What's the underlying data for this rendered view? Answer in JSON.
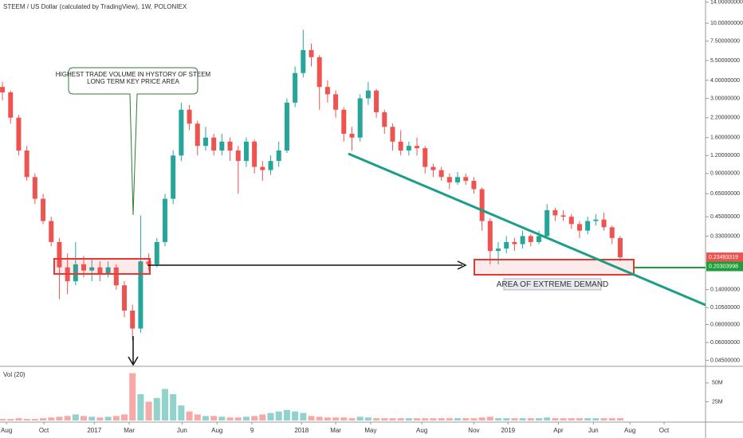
{
  "chart_data": {
    "type": "candlestick",
    "title": "STEEM / US Dollar (calculated by TradingView), 1W, POLONIEX",
    "log_scale": true,
    "up_color": "#26a69a",
    "down_color": "#ef5350",
    "open": [
      3.6,
      3.3,
      2.2,
      1.3,
      0.85,
      0.6,
      0.42,
      0.3,
      0.2,
      0.16,
      0.21,
      0.19,
      0.2,
      0.18,
      0.2,
      0.15,
      0.1,
      0.075,
      0.22,
      0.21,
      0.3,
      0.6,
      1.2,
      2.5,
      2.0,
      1.4,
      1.6,
      1.3,
      1.5,
      1.3,
      1.1,
      1.5,
      1.0,
      0.95,
      1.1,
      1.3,
      2.8,
      4.5,
      6.5,
      5.8,
      3.6,
      3.2,
      2.5,
      1.7,
      1.6,
      3.0,
      3.4,
      2.4,
      1.9,
      1.5,
      1.3,
      1.4,
      1.35,
      1.0,
      0.95,
      0.85,
      0.78,
      0.85,
      0.8,
      0.7,
      0.42,
      0.26,
      0.27,
      0.3,
      0.29,
      0.33,
      0.3,
      0.33,
      0.5,
      0.46,
      0.45,
      0.4,
      0.36,
      0.42,
      0.43,
      0.38,
      0.32
    ],
    "high": [
      3.9,
      3.4,
      2.3,
      1.4,
      0.9,
      0.65,
      0.45,
      0.32,
      0.25,
      0.3,
      0.24,
      0.23,
      0.22,
      0.22,
      0.21,
      0.16,
      0.11,
      0.46,
      0.25,
      0.32,
      0.65,
      1.3,
      2.8,
      2.7,
      2.1,
      1.9,
      1.7,
      1.7,
      1.6,
      1.4,
      1.6,
      1.55,
      1.1,
      1.2,
      1.5,
      3.0,
      5.0,
      9.0,
      7.2,
      6.0,
      4.0,
      3.4,
      2.6,
      1.9,
      3.2,
      3.9,
      3.5,
      2.5,
      2.0,
      1.8,
      1.5,
      1.6,
      1.4,
      1.05,
      1.0,
      0.9,
      0.92,
      0.9,
      0.85,
      0.72,
      0.44,
      0.3,
      0.33,
      0.32,
      0.36,
      0.34,
      0.36,
      0.55,
      0.52,
      0.5,
      0.47,
      0.42,
      0.45,
      0.47,
      0.48,
      0.39,
      0.33
    ],
    "low": [
      2.9,
      2.0,
      1.2,
      0.8,
      0.55,
      0.4,
      0.28,
      0.12,
      0.13,
      0.15,
      0.17,
      0.16,
      0.16,
      0.17,
      0.14,
      0.09,
      0.062,
      0.07,
      0.19,
      0.2,
      0.28,
      0.55,
      1.1,
      1.8,
      1.2,
      1.3,
      1.2,
      1.2,
      1.1,
      0.65,
      1.0,
      0.9,
      0.8,
      0.88,
      1.0,
      1.25,
      2.6,
      4.2,
      5.0,
      2.5,
      2.8,
      2.2,
      1.5,
      1.3,
      1.5,
      2.7,
      2.2,
      1.7,
      1.3,
      1.2,
      1.2,
      1.2,
      0.9,
      0.85,
      0.8,
      0.7,
      0.75,
      0.75,
      0.65,
      0.36,
      0.21,
      0.21,
      0.25,
      0.26,
      0.27,
      0.28,
      0.29,
      0.32,
      0.42,
      0.42,
      0.37,
      0.32,
      0.34,
      0.39,
      0.36,
      0.29,
      0.22
    ],
    "close": [
      3.3,
      2.2,
      1.3,
      0.85,
      0.6,
      0.42,
      0.3,
      0.2,
      0.16,
      0.21,
      0.19,
      0.2,
      0.18,
      0.2,
      0.15,
      0.1,
      0.075,
      0.22,
      0.21,
      0.3,
      0.6,
      1.2,
      2.5,
      2.0,
      1.4,
      1.6,
      1.3,
      1.5,
      1.3,
      1.1,
      1.5,
      1.0,
      0.95,
      1.1,
      1.3,
      2.8,
      4.5,
      6.5,
      5.8,
      3.6,
      3.2,
      2.5,
      1.7,
      1.6,
      3.0,
      3.4,
      2.4,
      1.9,
      1.5,
      1.3,
      1.4,
      1.35,
      1.0,
      0.95,
      0.85,
      0.78,
      0.85,
      0.8,
      0.7,
      0.42,
      0.26,
      0.27,
      0.3,
      0.29,
      0.33,
      0.3,
      0.33,
      0.5,
      0.46,
      0.45,
      0.4,
      0.36,
      0.42,
      0.43,
      0.38,
      0.32,
      0.2349
    ],
    "ylim": [
      0.042,
      14.5
    ],
    "yticks": [
      {
        "value": 14,
        "label": "14.00000000"
      },
      {
        "value": 10,
        "label": "10.00000000"
      },
      {
        "value": 7.5,
        "label": "7.50000000"
      },
      {
        "value": 5.5,
        "label": "5.50000000"
      },
      {
        "value": 4,
        "label": "4.00000000"
      },
      {
        "value": 3,
        "label": "3.00000000"
      },
      {
        "value": 2.2,
        "label": "2.20000000"
      },
      {
        "value": 1.6,
        "label": "1.60000000"
      },
      {
        "value": 1.2,
        "label": "1.20000000"
      },
      {
        "value": 0.9,
        "label": "0.90000000"
      },
      {
        "value": 0.65,
        "label": "0.65000000"
      },
      {
        "value": 0.45,
        "label": "0.45000000"
      },
      {
        "value": 0.33,
        "label": "0.33000000"
      },
      {
        "value": 0.14,
        "label": "0.14000000"
      },
      {
        "value": 0.105,
        "label": "0.10500000"
      },
      {
        "value": 0.08,
        "label": "0.08000000"
      },
      {
        "value": 0.06,
        "label": "0.06000000"
      },
      {
        "value": 0.045,
        "label": "0.04500000"
      }
    ],
    "price_tags": [
      {
        "value": 0.23493319,
        "color": "#ef5350"
      },
      {
        "value": 0.20303998,
        "color": "#1e9e3a"
      }
    ],
    "xlim": [
      -0.3,
      86.5
    ],
    "xticks": [
      {
        "value": 0.5,
        "label": "Aug"
      },
      {
        "value": 5.1,
        "label": "Oct"
      },
      {
        "value": 11.3,
        "label": "2017"
      },
      {
        "value": 15.6,
        "label": "Mar"
      },
      {
        "value": 22.1,
        "label": "Jun"
      },
      {
        "value": 26.4,
        "label": "Aug"
      },
      {
        "value": 30.7,
        "label": "9"
      },
      {
        "value": 36.8,
        "label": "2018"
      },
      {
        "value": 41.0,
        "label": "Mar"
      },
      {
        "value": 45.3,
        "label": "May"
      },
      {
        "value": 51.6,
        "label": "Aug"
      },
      {
        "value": 58.0,
        "label": "Nov"
      },
      {
        "value": 62.2,
        "label": "2019"
      },
      {
        "value": 68.4,
        "label": "Apr"
      },
      {
        "value": 72.7,
        "label": "Jun"
      },
      {
        "value": 77.2,
        "label": "Aug"
      },
      {
        "value": 81.4,
        "label": "Oct"
      }
    ],
    "volume": {
      "label": "Vol (20)",
      "values": [
        2,
        2,
        3,
        2,
        2,
        3,
        4,
        5,
        6,
        8,
        6,
        5,
        4,
        5,
        6,
        8,
        63,
        35,
        25,
        30,
        42,
        35,
        20,
        12,
        8,
        6,
        6,
        5,
        4,
        4,
        5,
        6,
        8,
        10,
        12,
        14,
        12,
        10,
        6,
        5,
        4,
        4,
        4,
        3,
        5,
        4,
        3,
        3,
        3,
        3,
        3,
        3,
        3,
        3,
        3,
        3,
        3,
        3,
        3,
        4,
        5,
        3,
        3,
        3,
        3,
        3,
        3,
        4,
        3,
        3,
        3,
        3,
        3,
        3,
        3,
        3,
        3
      ],
      "ylim": [
        0,
        70
      ],
      "yticks": [
        {
          "value": 50,
          "label": "50M"
        },
        {
          "value": 25,
          "label": "25M"
        }
      ]
    },
    "annotations": {
      "callout": [
        "HIGHEST TRADE VOLUME IN HYSTORY OF STEEM",
        "LONG TERM KEY PRICE AREA"
      ],
      "demand": "AREA OF EXTREME DEMAND"
    }
  }
}
